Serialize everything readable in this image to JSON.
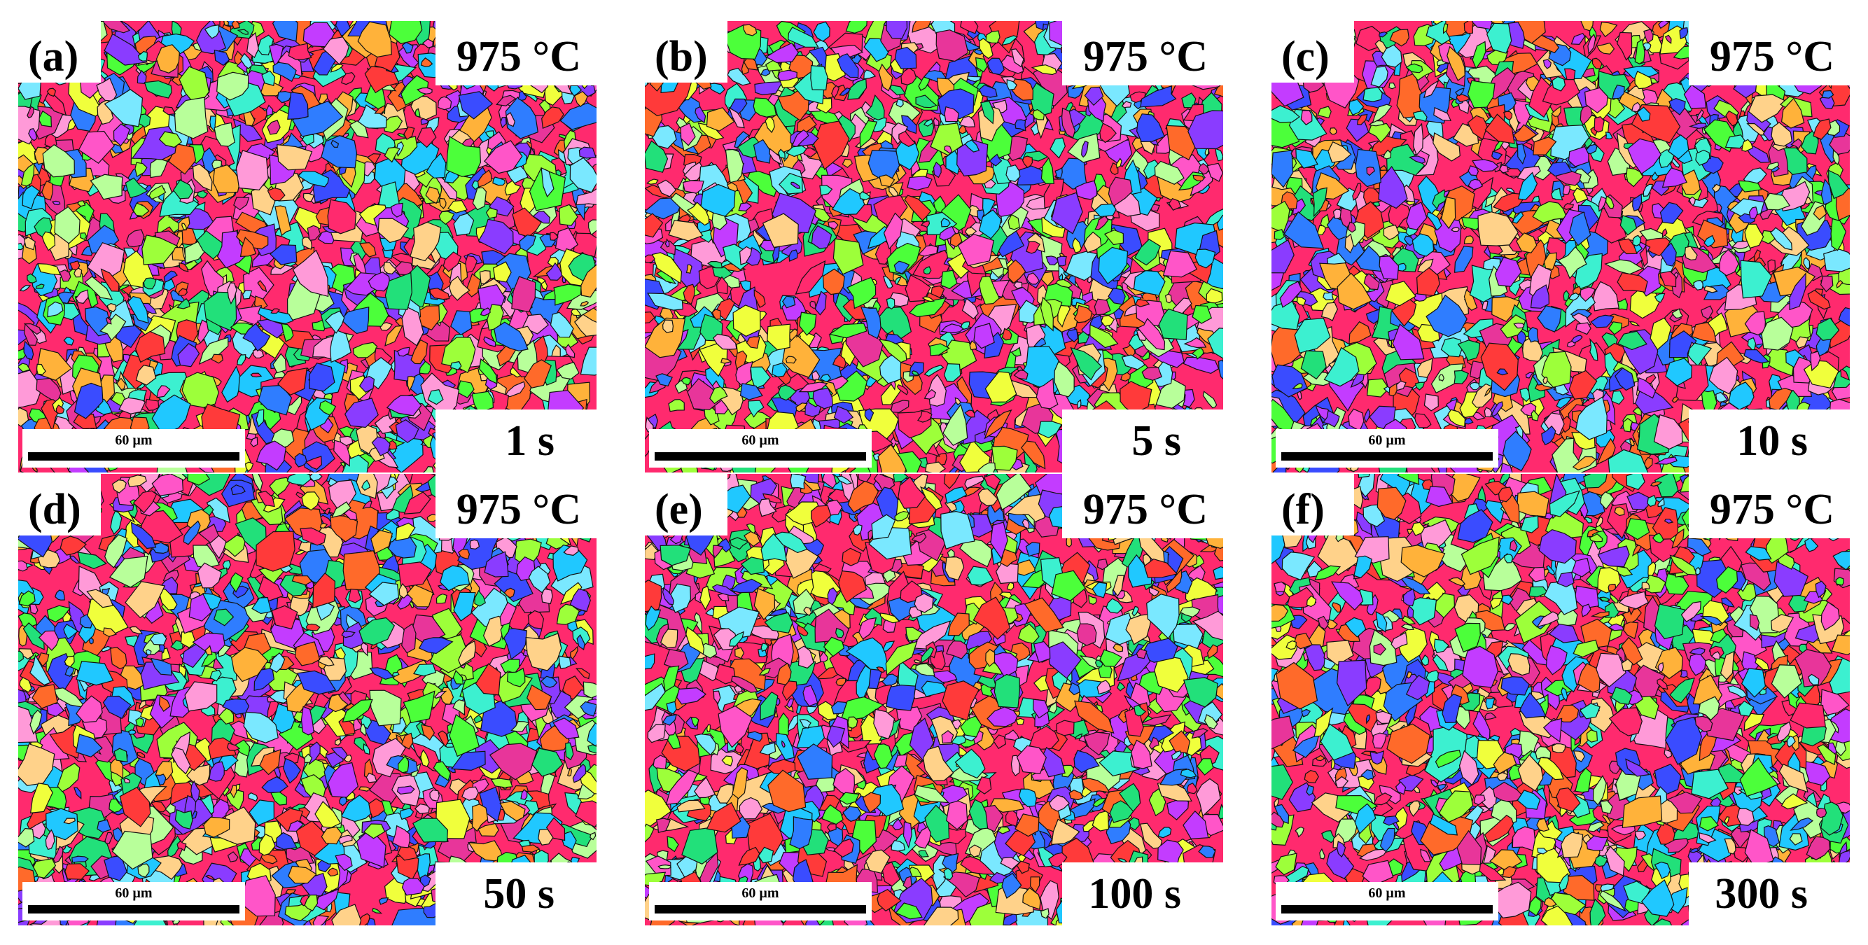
{
  "panels": [
    {
      "label": "(a)",
      "temperature": "975 °C",
      "time": "1 s",
      "scale_bar": "60 µm",
      "seed": 11
    },
    {
      "label": "(b)",
      "temperature": "975 °C",
      "time": "5 s",
      "scale_bar": "60 µm",
      "seed": 23
    },
    {
      "label": "(c)",
      "temperature": "975 °C",
      "time": "10 s",
      "scale_bar": "60 µm",
      "seed": 37
    },
    {
      "label": "(d)",
      "temperature": "975 °C",
      "time": "50 s",
      "scale_bar": "60 µm",
      "seed": 41
    },
    {
      "label": "(e)",
      "temperature": "975 °C",
      "time": "100 s",
      "scale_bar": "60 µm",
      "seed": 53
    },
    {
      "label": "(f)",
      "temperature": "975 °C",
      "time": "300 s",
      "scale_bar": "60 µm",
      "seed": 67
    }
  ],
  "palette": [
    "#ff2a6e",
    "#e8359a",
    "#ff55c8",
    "#c33cff",
    "#8a3cff",
    "#3a4cff",
    "#2f7dff",
    "#20c8ff",
    "#3cf0d0",
    "#22e07a",
    "#4cff3a",
    "#9dff3a",
    "#f0ff3c",
    "#ffb23a",
    "#ff6a2a",
    "#ff3a3a",
    "#ff9ad8",
    "#b8ff9a",
    "#7ae8ff",
    "#ffd28a"
  ]
}
